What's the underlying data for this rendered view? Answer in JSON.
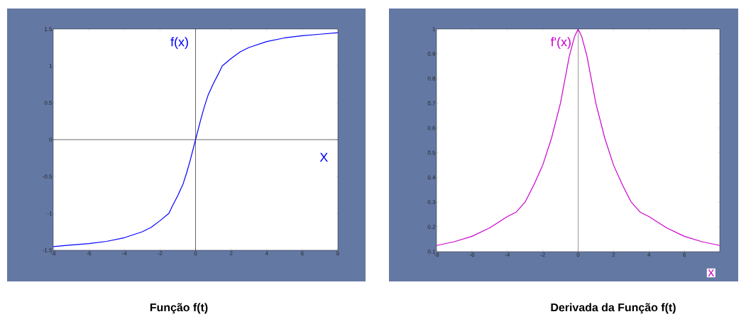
{
  "chart_data": [
    {
      "type": "line",
      "title": "Função f(t)",
      "xlabel": "X",
      "ylabel": "f(x)",
      "x": [
        -8,
        -7,
        -6,
        -5,
        -4,
        -3,
        -2.5,
        -2,
        -1.5,
        -1.3,
        -1,
        -0.7,
        -0.5,
        -0.3,
        0,
        0.3,
        0.5,
        0.7,
        1,
        1.3,
        1.5,
        2,
        2.5,
        3,
        4,
        5,
        6,
        7,
        8
      ],
      "series": [
        {
          "color": "#0000ff",
          "values": [
            -1.45,
            -1.43,
            -1.41,
            -1.38,
            -1.33,
            -1.25,
            -1.19,
            -1.1,
            -1.0,
            -0.9,
            -0.76,
            -0.6,
            -0.45,
            -0.28,
            0,
            0.28,
            0.45,
            0.6,
            0.76,
            0.9,
            1.0,
            1.1,
            1.19,
            1.25,
            1.33,
            1.38,
            1.41,
            1.43,
            1.45
          ]
        }
      ],
      "xlim": [
        -8,
        8
      ],
      "ylim": [
        -1.5,
        1.5
      ],
      "xticks": [
        -8,
        -6,
        -4,
        -2,
        0,
        2,
        4,
        6,
        8
      ],
      "yticks": [
        -1.5,
        -1,
        -0.5,
        0,
        0.5,
        1,
        1.5
      ],
      "ref_lines": [
        {
          "axis": "x",
          "value": 0,
          "color": "#000000"
        },
        {
          "axis": "y",
          "value": 0,
          "color": "#000000"
        }
      ]
    },
    {
      "type": "line",
      "title": "Derivada da Função f(t)",
      "xlabel": "x",
      "ylabel": "f'(x)",
      "x": [
        -8,
        -7,
        -6,
        -5,
        -4,
        -3.5,
        -3,
        -2.5,
        -2,
        -1.5,
        -1,
        -0.5,
        -0.2,
        0,
        0.2,
        0.5,
        1,
        1.5,
        2,
        2.5,
        3,
        3.5,
        4,
        5,
        6,
        7,
        8
      ],
      "series": [
        {
          "color": "#cc00cc",
          "values": [
            0.125,
            0.14,
            0.162,
            0.196,
            0.242,
            0.26,
            0.3,
            0.37,
            0.45,
            0.56,
            0.7,
            0.89,
            0.97,
            1.0,
            0.97,
            0.89,
            0.7,
            0.56,
            0.45,
            0.37,
            0.3,
            0.26,
            0.242,
            0.196,
            0.162,
            0.14,
            0.125
          ]
        }
      ],
      "xlim": [
        -8,
        8
      ],
      "ylim": [
        0.1,
        1
      ],
      "xticks": [
        -8,
        -6,
        -4,
        -2,
        0,
        2,
        4,
        6
      ],
      "yticks": [
        0.1,
        0.2,
        0.3,
        0.4,
        0.5,
        0.6,
        0.7,
        0.8,
        0.9,
        1
      ],
      "ref_lines": [
        {
          "axis": "x",
          "value": 0,
          "color": "#555555"
        }
      ]
    }
  ]
}
